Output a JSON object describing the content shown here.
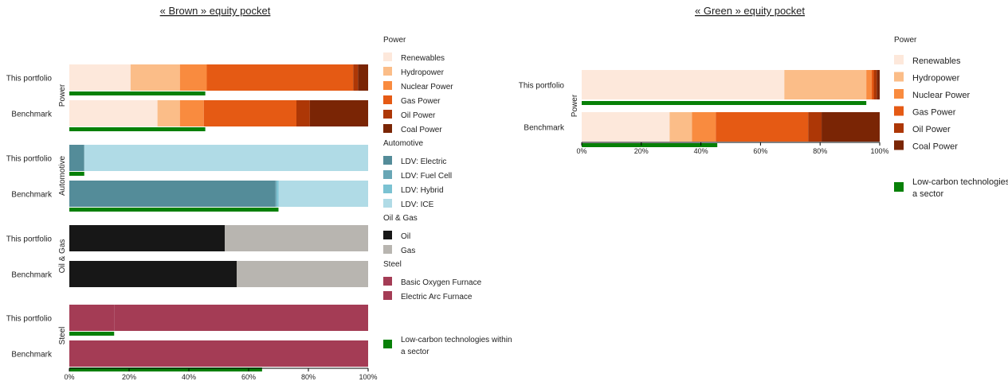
{
  "chart_data": [
    {
      "type": "bar",
      "orientation": "horizontal-stacked-percent",
      "title": "« Brown » equity pocket",
      "xlim": [
        0,
        100
      ],
      "x_ticks": [
        "0%",
        "20%",
        "40%",
        "60%",
        "80%",
        "100%"
      ],
      "rows": [
        "This portfolio",
        "Benchmark"
      ],
      "sectors": [
        {
          "name": "Power",
          "technologies": [
            "Renewables",
            "Hydropower",
            "Nuclear Power",
            "Gas Power",
            "Oil Power",
            "Coal Power"
          ],
          "colors": [
            "#fde8db",
            "#fbbd88",
            "#f98b3f",
            "#e55a14",
            "#ad3706",
            "#7a2505"
          ],
          "values": {
            "This portfolio": [
              20.5,
              16.5,
              9,
              49,
              1.6,
              3.4
            ],
            "Benchmark": [
              29.5,
              7.5,
              8,
              31,
              4.5,
              19.5
            ]
          },
          "low_carbon_share": {
            "This portfolio": 45.5,
            "Benchmark": 45.5
          }
        },
        {
          "name": "Automotive",
          "technologies": [
            "LDV: Electric",
            "LDV: Fuel Cell",
            "LDV: Hybrid",
            "LDV: ICE"
          ],
          "colors": [
            "#548c99",
            "#68a6b5",
            "#7bc2d2",
            "#b0dbe6"
          ],
          "values": {
            "This portfolio": [
              5,
              0,
              0,
              95
            ],
            "Benchmark": [
              69,
              0.4,
              0.6,
              30
            ]
          },
          "low_carbon_share": {
            "This portfolio": 5,
            "Benchmark": 70
          }
        },
        {
          "name": "Oil & Gas",
          "technologies": [
            "Oil",
            "Gas"
          ],
          "colors": [
            "#171717",
            "#b8b5b0"
          ],
          "values": {
            "This portfolio": [
              52,
              48
            ],
            "Benchmark": [
              56,
              44
            ]
          },
          "low_carbon_share": {
            "This portfolio": 0,
            "Benchmark": 0
          }
        },
        {
          "name": "Steel",
          "technologies": [
            "Basic Oxygen Furnace",
            "Electric Arc Furnace"
          ],
          "colors": [
            "#a43c55",
            "#a43c55"
          ],
          "values": {
            "This portfolio": [
              15,
              85
            ],
            "Benchmark": [
              64,
              36
            ]
          },
          "low_carbon_share": {
            "This portfolio": 15,
            "Benchmark": 64.5
          }
        }
      ],
      "low_carbon_legend": "Low-carbon technologies within a sector",
      "low_carbon_color": "#078007"
    },
    {
      "type": "bar",
      "orientation": "horizontal-stacked-percent",
      "title": "« Green » equity pocket",
      "xlim": [
        0,
        100
      ],
      "x_ticks": [
        "0%",
        "20%",
        "40%",
        "60%",
        "80%",
        "100%"
      ],
      "rows": [
        "This portfolio",
        "Benchmark"
      ],
      "sectors": [
        {
          "name": "Power",
          "technologies": [
            "Renewables",
            "Hydropower",
            "Nuclear Power",
            "Gas Power",
            "Oil Power",
            "Coal Power"
          ],
          "colors": [
            "#fde8db",
            "#fbbd88",
            "#f98b3f",
            "#e55a14",
            "#ad3706",
            "#7a2505"
          ],
          "values": {
            "This portfolio": [
              68,
              27.5,
              1.8,
              0.7,
              1,
              1
            ],
            "Benchmark": [
              29.5,
              7.5,
              8,
              31,
              4.5,
              19.5
            ]
          },
          "low_carbon_share": {
            "This portfolio": 95.5,
            "Benchmark": 45.5
          }
        }
      ],
      "low_carbon_legend": "Low-carbon technologies within a sector",
      "low_carbon_color": "#078007"
    }
  ]
}
